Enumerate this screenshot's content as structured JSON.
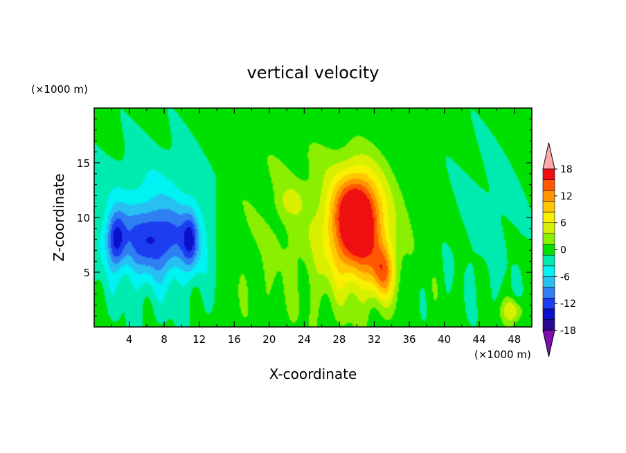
{
  "chart_data": {
    "type": "heatmap",
    "title": "vertical velocity",
    "xlabel": "X-coordinate",
    "ylabel": "Z-coordinate",
    "x_unit": "(×1000 m)",
    "y_unit": "(×1000 m)",
    "xlim": [
      0,
      50
    ],
    "ylim": [
      0,
      20
    ],
    "x_ticks": [
      4,
      8,
      12,
      16,
      20,
      24,
      28,
      32,
      36,
      40,
      44,
      48
    ],
    "y_ticks": [
      5,
      10,
      15
    ],
    "colorbar": {
      "labels": [
        18,
        12,
        6,
        0,
        -6,
        -12,
        -18
      ],
      "levels": [
        -21,
        -18,
        -15,
        -12,
        -9,
        -6,
        -3,
        0,
        3,
        6,
        9,
        12,
        15,
        18,
        21
      ],
      "colors": [
        "#7d0fb0",
        "#2a0a8c",
        "#0a10c8",
        "#1d3df0",
        "#2f7ef2",
        "#28c0f2",
        "#00f2f2",
        "#00ebb0",
        "#00e000",
        "#8aef00",
        "#d8f000",
        "#f8f000",
        "#ffc800",
        "#ff9600",
        "#ff5800",
        "#ee1010",
        "#ffaaaa"
      ],
      "extend": "both"
    },
    "features": [
      {
        "x": 30,
        "z": 8.5,
        "w": 6.5,
        "peak": 21,
        "sx": 3.2,
        "sz": 4.5
      },
      {
        "x": 33,
        "z": 5,
        "w": 5,
        "peak": 14,
        "sx": 1.4,
        "sz": 2.5
      },
      {
        "x": 30,
        "z": 11,
        "w": 4,
        "peak": 14,
        "sx": 2.5,
        "sz": 3.5
      },
      {
        "x": 7,
        "z": 8,
        "w": 8.5,
        "peak": -12,
        "sx": 4.5,
        "sz": 3
      },
      {
        "x": 11,
        "z": 8,
        "w": 2.5,
        "peak": -10,
        "sx": 0.9,
        "sz": 2.5
      },
      {
        "x": 2.5,
        "z": 8,
        "w": 3,
        "peak": -12,
        "sx": 1,
        "sz": 2.5
      },
      {
        "x": 47.8,
        "z": 1.5,
        "w": 1.8,
        "peak": 9,
        "sx": 1.2,
        "sz": 1.1
      },
      {
        "x": 22.5,
        "z": 11.5,
        "w": 1.8,
        "peak": 5,
        "sx": 1.2,
        "sz": 1.2
      }
    ]
  }
}
